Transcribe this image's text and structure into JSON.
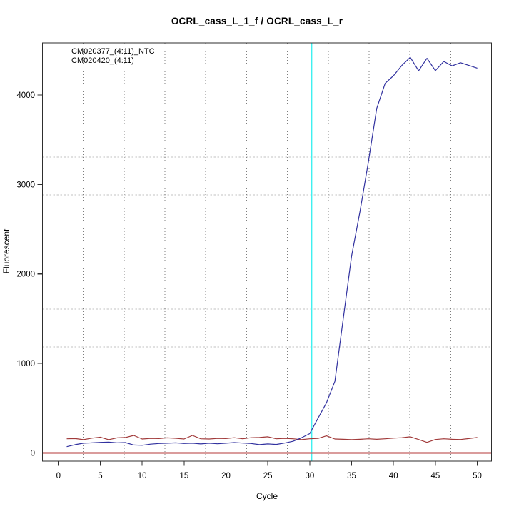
{
  "title": "OCRL_cass_L_1_f / OCRL_cass_L_r",
  "axes": {
    "x": {
      "label": "Cycle",
      "ticks": [
        0,
        5,
        10,
        15,
        20,
        25,
        30,
        35,
        40,
        45,
        50
      ],
      "range": [
        -1.9,
        51.7
      ]
    },
    "y": {
      "label": "Fluorescent",
      "ticks": [
        0,
        1000,
        2000,
        3000,
        4000
      ],
      "range": [
        -92,
        4582
      ]
    }
  },
  "legend": {
    "items": [
      {
        "label": "CM020377_(4:11)_NTC",
        "swatch_color": "#a85252"
      },
      {
        "label": "CM020420_(4:11)",
        "swatch_color": "#7a7ac9"
      }
    ]
  },
  "colors": {
    "ntc_series": "#a13a3a",
    "sample_series": "#31319f",
    "threshold_line": "#c46262",
    "ct_line": "#3ff0f0",
    "grid_vertical": "#7d7d7d",
    "grid_horizontal": "#c2c2c2",
    "axis_box": "#2e2e2e",
    "text": "#000000"
  },
  "chart_data": {
    "type": "line",
    "title": "OCRL_cass_L_1_f / OCRL_cass_L_r",
    "xlabel": "Cycle",
    "ylabel": "Fluorescent",
    "xlim": [
      -1.9,
      51.7
    ],
    "ylim": [
      -92,
      4582
    ],
    "grid": {
      "nx": 11,
      "ny": 11,
      "vertical_style": "dotted",
      "horizontal_style": "dashed"
    },
    "threshold_line_y": 0,
    "ct_line_x": 30.2,
    "x": [
      1,
      2,
      3,
      4,
      5,
      6,
      7,
      8,
      9,
      10,
      11,
      12,
      13,
      14,
      15,
      16,
      17,
      18,
      19,
      20,
      21,
      22,
      23,
      24,
      25,
      26,
      27,
      28,
      29,
      30,
      31,
      32,
      33,
      34,
      35,
      36,
      37,
      38,
      39,
      40,
      41,
      42,
      43,
      44,
      45,
      46,
      47,
      48,
      49,
      50
    ],
    "series": [
      {
        "name": "CM020377_(4:11)_NTC",
        "color": "#a13a3a",
        "values": [
          158,
          160,
          148,
          165,
          175,
          148,
          168,
          172,
          195,
          155,
          162,
          160,
          168,
          163,
          155,
          195,
          158,
          155,
          162,
          160,
          170,
          158,
          170,
          172,
          180,
          158,
          162,
          158,
          148,
          158,
          162,
          190,
          155,
          152,
          148,
          152,
          158,
          152,
          158,
          165,
          170,
          180,
          150,
          118,
          150,
          158,
          152,
          150,
          160,
          172
        ]
      },
      {
        "name": "CM020420_(4:11)",
        "color": "#31319f",
        "values": [
          70,
          92,
          108,
          112,
          118,
          120,
          112,
          115,
          88,
          85,
          98,
          105,
          108,
          112,
          105,
          108,
          100,
          108,
          102,
          108,
          115,
          110,
          105,
          92,
          100,
          95,
          110,
          130,
          168,
          215,
          390,
          560,
          800,
          1500,
          2200,
          2700,
          3250,
          3850,
          4130,
          4215,
          4330,
          4420,
          4270,
          4410,
          4272,
          4375,
          4325,
          4360,
          4330,
          4300
        ]
      }
    ]
  }
}
